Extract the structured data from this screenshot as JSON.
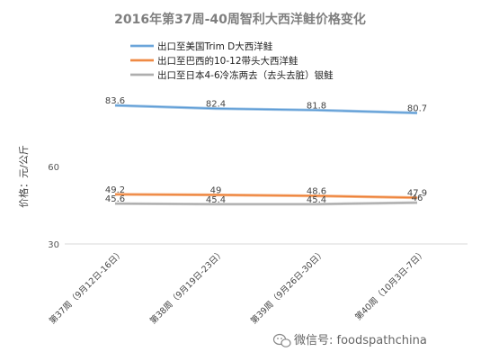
{
  "chart_data": {
    "type": "line",
    "title": "2016年第37周-40周智利大西洋鲑价格变化",
    "ylabel": "价格：元/公斤",
    "xlabel": "",
    "ylim": [
      30,
      84
    ],
    "yticks": [
      30,
      60
    ],
    "categories": [
      "第37周（9月12日-16日）",
      "第38周（9月19日-23日）",
      "第39周（9月26日-30日）",
      "第40周（10月3日-7日）"
    ],
    "series": [
      {
        "name": "出口至美国Trim D大西洋鲑",
        "color": "#5b9bd5",
        "values": [
          83.6,
          82.4,
          81.8,
          80.7
        ],
        "labels": [
          "83.6",
          "82.4",
          "81.8",
          "80.7"
        ]
      },
      {
        "name": "出口至巴西的10-12带头大西洋鲑",
        "color": "#ed7d31",
        "values": [
          49.2,
          49,
          48.6,
          47.9
        ],
        "labels": [
          "49.2",
          "49",
          "48.6",
          "47.9"
        ]
      },
      {
        "name": "出口至日本4-6冷冻两去（去头去脏）银鲑",
        "color": "#a5a5a5",
        "values": [
          45.6,
          45.4,
          45.4,
          46
        ],
        "labels": [
          "45.6",
          "45.4",
          "45.4",
          "46"
        ]
      }
    ],
    "grid": false,
    "legend": "top-center"
  },
  "watermark": {
    "text": "微信号: foodspathchina",
    "icon": "wechat-icon"
  }
}
